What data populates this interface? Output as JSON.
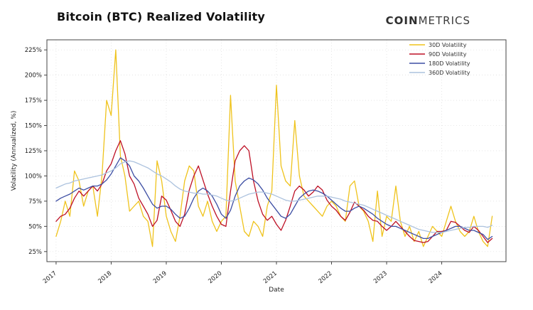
{
  "header": {
    "title": "Bitcoin (BTC) Realized Volatility",
    "logo": {
      "bold": "COIN",
      "light": "METRICS"
    }
  },
  "chart_data": {
    "type": "line",
    "title": "Bitcoin (BTC) Realized Volatility",
    "xlabel": "Date",
    "ylabel": "Volatility (Annualized, %)",
    "x_unit": "month",
    "x_start": "2017-01",
    "x_tick_labels": [
      "2017",
      "2018",
      "2019",
      "2020",
      "2021",
      "2022",
      "2023",
      "2024"
    ],
    "x_tick_indices": [
      0,
      12,
      24,
      36,
      48,
      60,
      72,
      84
    ],
    "y_ticks": [
      25,
      50,
      75,
      100,
      125,
      150,
      175,
      200,
      225
    ],
    "y_tick_suffix": "%",
    "ylim": [
      15,
      235
    ],
    "grid": true,
    "grid_color": "#dcdcdc",
    "axis_color": "#444444",
    "legend_position": "upper right",
    "series": [
      {
        "name": "30D Volatility",
        "color": "#EFC31C",
        "values": [
          40,
          55,
          75,
          60,
          105,
          95,
          70,
          85,
          90,
          60,
          100,
          175,
          160,
          225,
          120,
          100,
          65,
          70,
          75,
          60,
          55,
          30,
          115,
          95,
          60,
          45,
          35,
          60,
          95,
          110,
          105,
          70,
          60,
          75,
          55,
          45,
          55,
          60,
          180,
          95,
          70,
          45,
          40,
          55,
          50,
          40,
          70,
          85,
          190,
          110,
          95,
          90,
          155,
          100,
          80,
          75,
          70,
          65,
          60,
          70,
          75,
          70,
          60,
          55,
          90,
          95,
          70,
          65,
          55,
          35,
          85,
          40,
          60,
          55,
          90,
          55,
          40,
          50,
          35,
          45,
          30,
          40,
          50,
          45,
          40,
          55,
          70,
          55,
          45,
          40,
          45,
          60,
          45,
          35,
          30,
          60
        ]
      },
      {
        "name": "90D Volatility",
        "color": "#BE1126",
        "values": [
          55,
          60,
          62,
          68,
          78,
          85,
          80,
          85,
          90,
          85,
          92,
          105,
          112,
          125,
          135,
          122,
          100,
          92,
          78,
          70,
          62,
          50,
          56,
          80,
          76,
          66,
          55,
          50,
          62,
          86,
          100,
          110,
          96,
          82,
          70,
          60,
          52,
          50,
          85,
          115,
          125,
          130,
          125,
          95,
          75,
          62,
          56,
          60,
          52,
          46,
          56,
          70,
          85,
          90,
          86,
          80,
          84,
          90,
          86,
          76,
          70,
          66,
          60,
          56,
          64,
          74,
          70,
          66,
          60,
          56,
          55,
          50,
          46,
          50,
          55,
          50,
          45,
          40,
          36,
          35,
          34,
          35,
          40,
          45,
          45,
          46,
          55,
          54,
          50,
          46,
          44,
          50,
          46,
          40,
          34,
          38
        ]
      },
      {
        "name": "180D Volatility",
        "color": "#3D4EA3",
        "values": [
          75,
          78,
          80,
          82,
          85,
          88,
          86,
          88,
          90,
          90,
          92,
          96,
          102,
          110,
          118,
          115,
          110,
          100,
          95,
          88,
          80,
          72,
          68,
          70,
          70,
          67,
          62,
          58,
          60,
          68,
          78,
          85,
          88,
          85,
          80,
          72,
          62,
          58,
          66,
          80,
          90,
          95,
          98,
          96,
          92,
          86,
          78,
          72,
          66,
          60,
          58,
          62,
          70,
          78,
          82,
          85,
          86,
          85,
          83,
          80,
          76,
          72,
          68,
          65,
          65,
          68,
          70,
          68,
          65,
          62,
          58,
          55,
          52,
          50,
          50,
          48,
          46,
          44,
          42,
          40,
          38,
          38,
          40,
          42,
          44,
          46,
          48,
          50,
          50,
          48,
          46,
          46,
          44,
          42,
          37,
          40
        ]
      },
      {
        "name": "360D Volatility",
        "color": "#ACC2DE",
        "values": [
          88,
          90,
          92,
          93,
          95,
          96,
          97,
          98,
          99,
          100,
          101,
          103,
          105,
          108,
          112,
          114,
          115,
          114,
          112,
          110,
          108,
          105,
          102,
          100,
          97,
          94,
          90,
          87,
          85,
          84,
          83,
          83,
          82,
          82,
          81,
          80,
          78,
          76,
          75,
          76,
          78,
          80,
          82,
          83,
          84,
          84,
          83,
          82,
          80,
          78,
          76,
          75,
          75,
          76,
          77,
          78,
          79,
          80,
          80,
          80,
          79,
          78,
          77,
          75,
          74,
          73,
          72,
          71,
          69,
          67,
          65,
          63,
          61,
          59,
          57,
          55,
          53,
          51,
          49,
          47,
          46,
          45,
          44,
          44,
          44,
          45,
          46,
          47,
          48,
          49,
          49,
          50,
          50,
          50,
          49,
          51
        ]
      }
    ]
  }
}
